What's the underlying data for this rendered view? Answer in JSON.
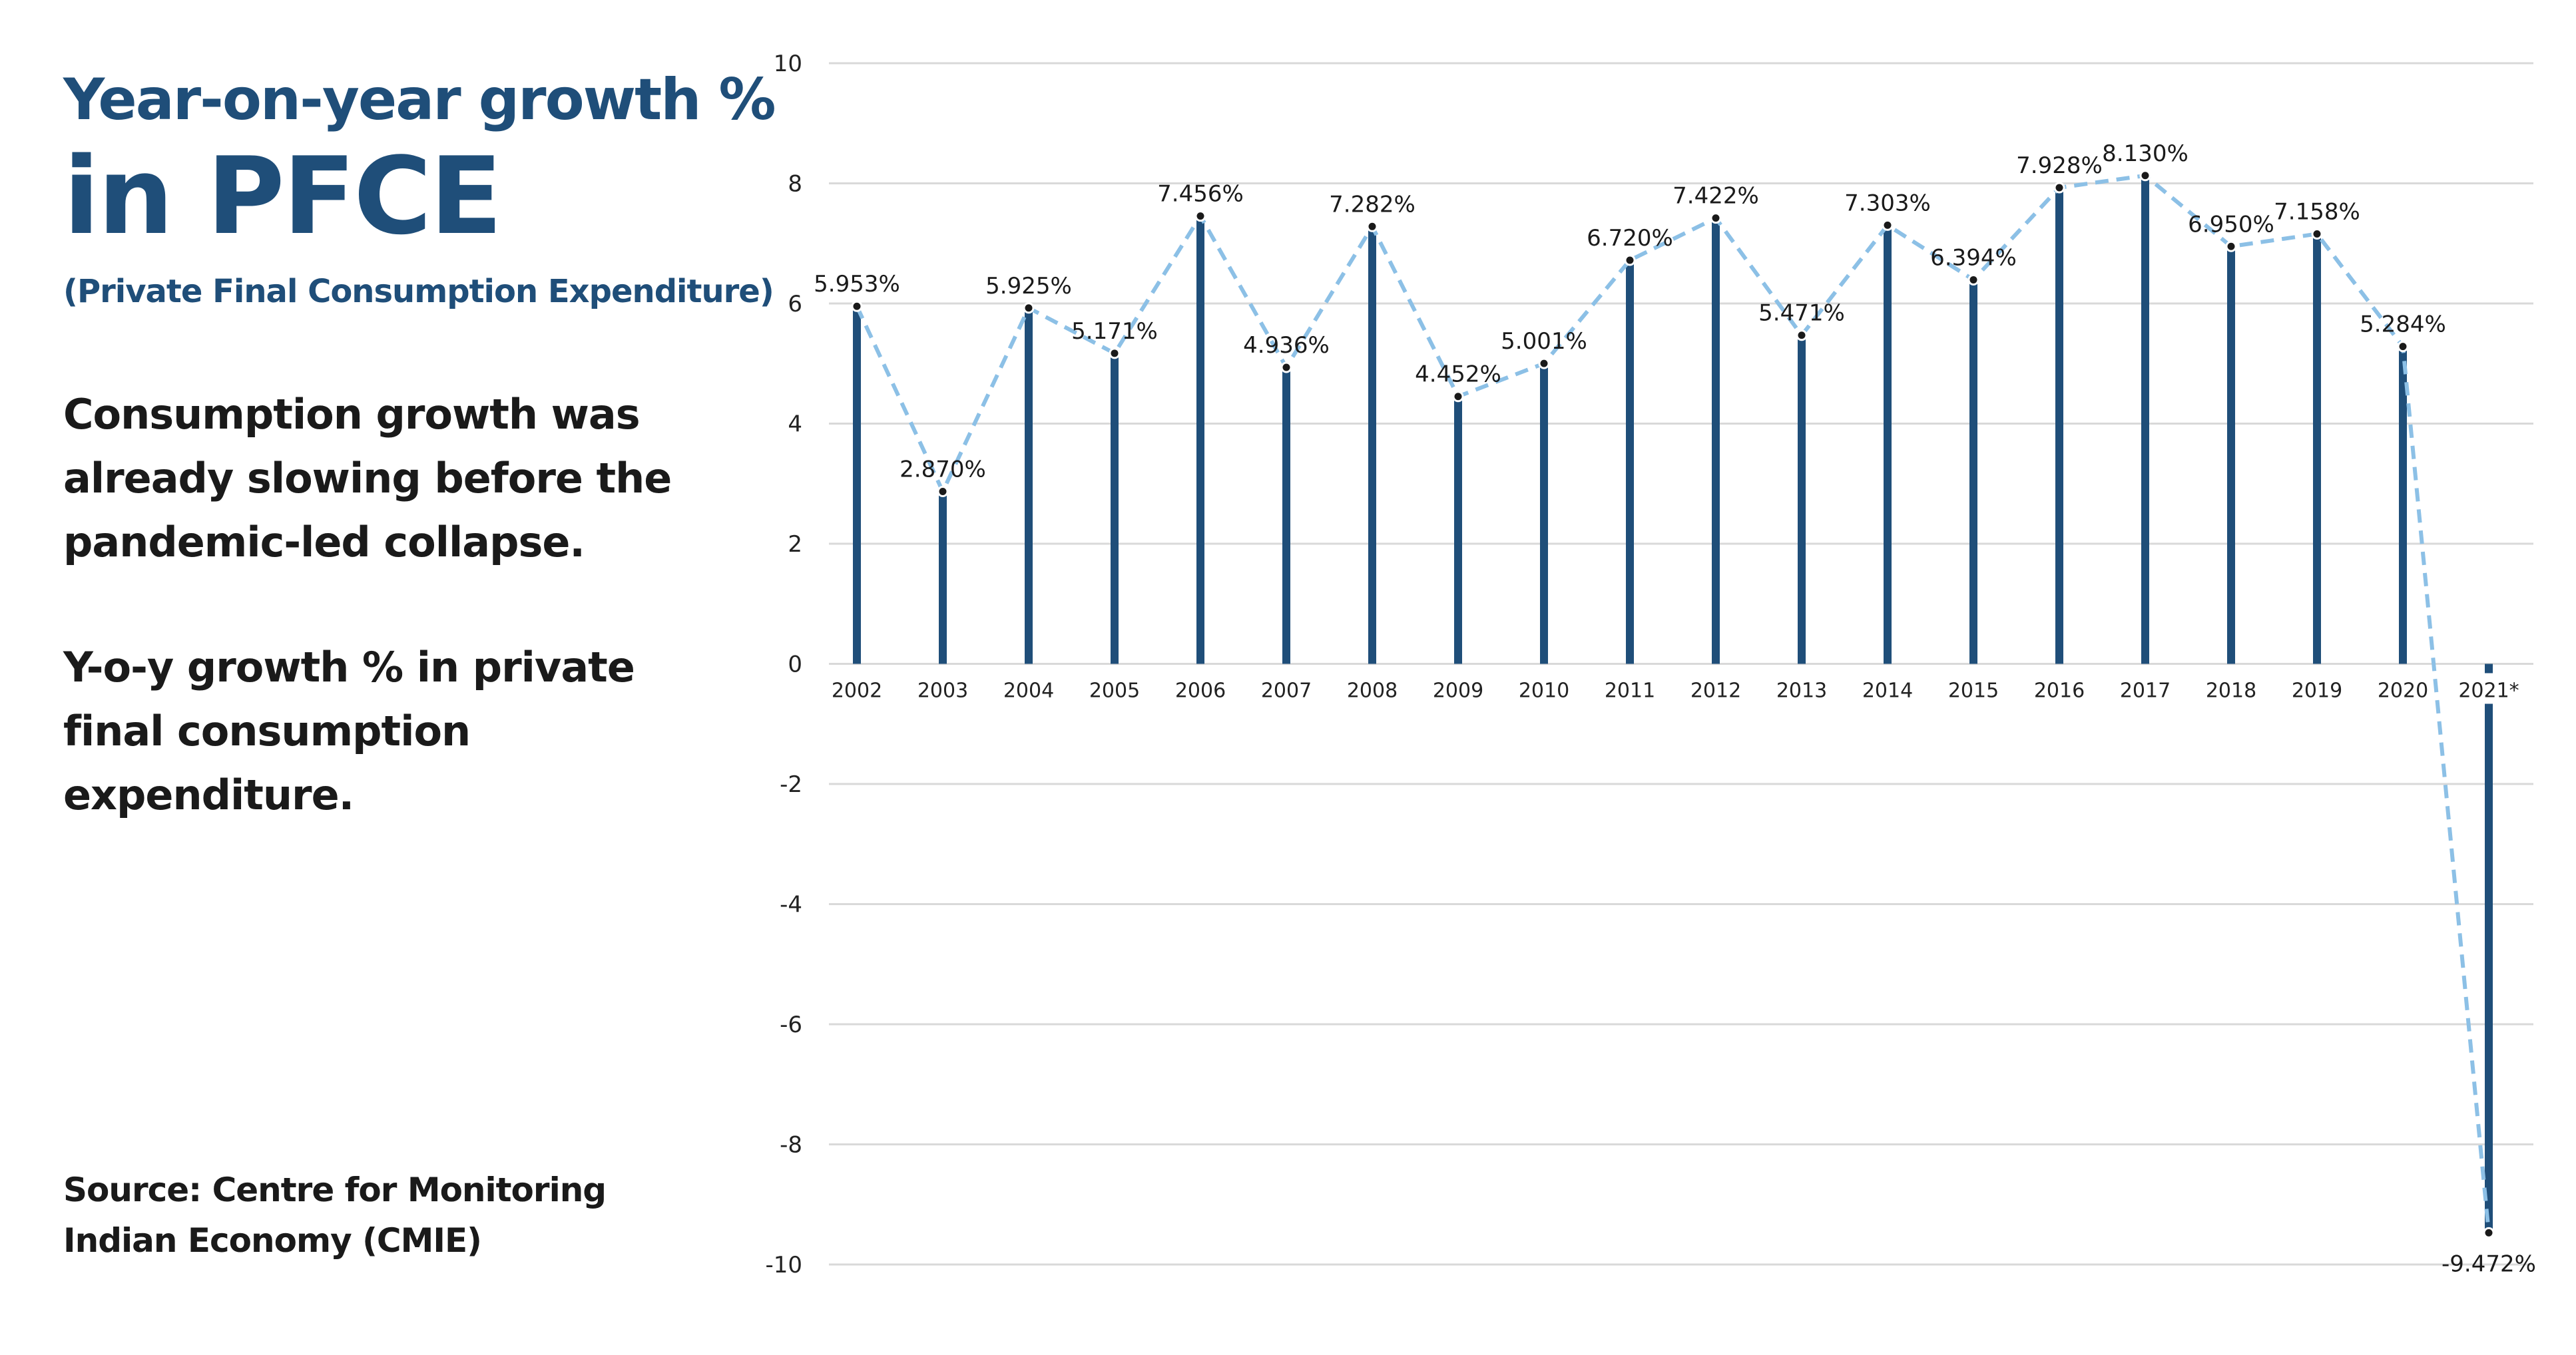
{
  "heading": {
    "line1": "Year-on-year growth %",
    "line2": "in PFCE",
    "subtitle": "(Private Final Consumption Expenditure)"
  },
  "body": {
    "para1": "Consumption growth was already slowing before the pandemic-led collapse.",
    "para2": "Y-o-y growth % in private final consumption expenditure."
  },
  "source": "Source: Centre for Monitoring Indian Economy (CMIE)",
  "colors": {
    "title": "#1f4e79",
    "bar": "#1f4e79",
    "trend_line": "#8cc0e6",
    "marker": "#1a1a1a",
    "grid": "#d9d9d9"
  },
  "chart_data": {
    "type": "bar",
    "overlay": "dashed line with point markers",
    "categories": [
      "2002",
      "2003",
      "2004",
      "2005",
      "2006",
      "2007",
      "2008",
      "2009",
      "2010",
      "2011",
      "2012",
      "2013",
      "2014",
      "2015",
      "2016",
      "2017",
      "2018",
      "2019",
      "2020",
      "2021*"
    ],
    "values": [
      5.953,
      2.87,
      5.925,
      5.171,
      7.456,
      4.936,
      7.282,
      4.452,
      5.001,
      6.72,
      7.422,
      5.471,
      7.303,
      6.394,
      7.928,
      8.13,
      6.95,
      7.158,
      5.284,
      -9.472
    ],
    "data_labels": [
      "5.953%",
      "2.870%",
      "5.925%",
      "5.171%",
      "7.456%",
      "4.936%",
      "7.282%",
      "4.452%",
      "5.001%",
      "6.720%",
      "7.422%",
      "5.471%",
      "7.303%",
      "6.394%",
      "7.928%",
      "8.130%",
      "6.950%",
      "7.158%",
      "5.284%",
      "-9.472%"
    ],
    "yticks": [
      10,
      8,
      6,
      4,
      2,
      0,
      -2,
      -4,
      -6,
      -8,
      -10
    ],
    "ylim": [
      -10,
      10
    ],
    "grid": true,
    "legend": "none",
    "title": "",
    "xlabel": "",
    "ylabel": ""
  }
}
